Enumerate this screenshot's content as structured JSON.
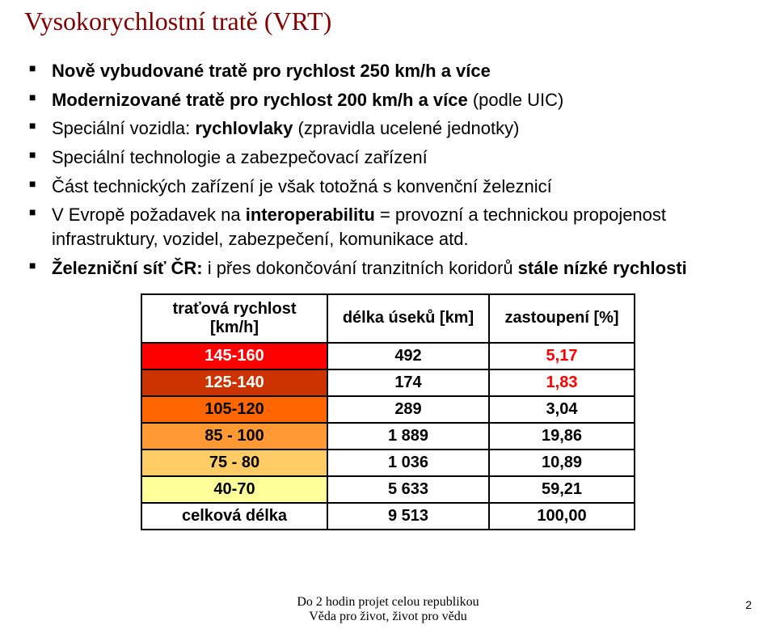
{
  "title": "Vysokorychlostní tratě (VRT)",
  "bullets": {
    "b1": {
      "bold": "Nově vybudované tratě pro rychlost 250 km/h a více"
    },
    "b2": {
      "bold": "Modernizované tratě pro rychlost 200 km/h a více",
      "rest": " (podle UIC)"
    },
    "b3": {
      "lead": "Speciální vozidla: ",
      "bold": "rychlovlaky",
      "rest": " (zpravidla ucelené jednotky)"
    },
    "b4": {
      "text": "Speciální technologie a zabezpečovací zařízení"
    },
    "b5": {
      "text": "Část technických zařízení je však totožná s konvenční železnicí"
    },
    "b6": {
      "lead": "V Evropě požadavek na ",
      "bold": "interoperabilitu",
      "rest": " = provozní a technickou propojenost infrastruktury, vozidel, zabezpečení, komunikace atd."
    },
    "b7": {
      "bold1": "Železniční síť ČR:",
      "mid": " i přes dokončování tranzitních koridorů ",
      "bold2": "stále nízké rychlosti"
    }
  },
  "table": {
    "headers": {
      "c1": "traťová rychlost [km/h]",
      "c2": "délka úseků [km]",
      "c3": "zastoupení [%]"
    },
    "rows": [
      {
        "cls": "r1",
        "speed": "145-160",
        "len": "492",
        "pct": "5,17"
      },
      {
        "cls": "r2",
        "speed": "125-140",
        "len": "174",
        "pct": "1,83"
      },
      {
        "cls": "r3",
        "speed": "105-120",
        "len": "289",
        "pct": "3,04"
      },
      {
        "cls": "r4",
        "speed": "85 - 100",
        "len": "1 889",
        "pct": "19,86"
      },
      {
        "cls": "r5",
        "speed": "75 - 80",
        "len": "1 036",
        "pct": "10,89"
      },
      {
        "cls": "r6",
        "speed": "40-70",
        "len": "5 633",
        "pct": "59,21"
      }
    ],
    "total": {
      "label": "celková délka",
      "len": "9 513",
      "pct": "100,00"
    }
  },
  "footer": {
    "line1": "Do 2 hodin projet celou republikou",
    "line2": "Věda pro život, život pro vědu"
  },
  "page": "2"
}
